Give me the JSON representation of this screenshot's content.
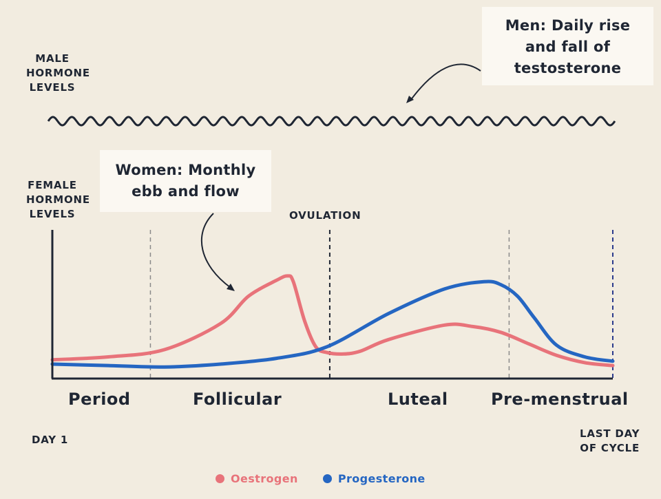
{
  "male_label": "MALE\nHORMONE\nLEVELS",
  "female_label": "FEMALE\nHORMONE\nLEVELS",
  "men_callout": "Men: Daily rise\nand fall of\ntestosterone",
  "women_callout": "Women: Monthly\nebb and flow",
  "ovulation_label": "OVULATION",
  "day1_label": "DAY 1",
  "last_day_label": "LAST DAY\nOF CYCLE",
  "colors": {
    "oestrogen": "#e8737a",
    "progesterone": "#2566c2",
    "axis": "#1f2633",
    "divider": "#8a8a8a",
    "last_divider": "#2a3a8c"
  },
  "chart_data": {
    "type": "line",
    "title": "",
    "xlabel": "",
    "ylabel": "FEMALE HORMONE LEVELS",
    "x_range": [
      0,
      100
    ],
    "y_range": [
      0,
      100
    ],
    "grid": false,
    "legend_position": "bottom",
    "phases": [
      "Period",
      "Follicular",
      "Luteal",
      "Pre-menstrual"
    ],
    "vertical_markers": [
      {
        "x": 17.5,
        "label": ""
      },
      {
        "x": 49.5,
        "label": "OVULATION"
      },
      {
        "x": 81.5,
        "label": ""
      },
      {
        "x": 100,
        "label": ""
      }
    ],
    "series": [
      {
        "name": "Oestrogen",
        "color": "#e8737a",
        "x": [
          0,
          10,
          20,
          30,
          35,
          40,
          42,
          43,
          45,
          47,
          49,
          52,
          55,
          60,
          70,
          75,
          80,
          85,
          90,
          95,
          100
        ],
        "y": [
          13,
          15,
          20,
          38,
          57,
          68,
          71,
          67,
          40,
          22,
          18,
          17,
          19,
          27,
          37,
          36,
          32,
          24,
          16,
          11,
          9
        ]
      },
      {
        "name": "Progesterone",
        "color": "#2566c2",
        "x": [
          0,
          10,
          20,
          30,
          40,
          49,
          60,
          70,
          77,
          80,
          83,
          86,
          90,
          95,
          100
        ],
        "y": [
          10,
          9,
          8,
          10,
          14,
          22,
          45,
          62,
          67,
          65,
          57,
          42,
          23,
          15,
          12
        ]
      },
      {
        "name": "",
        "description": "male daily rise and fall (wavy line)",
        "periods": 30,
        "amplitude": 6
      }
    ]
  }
}
